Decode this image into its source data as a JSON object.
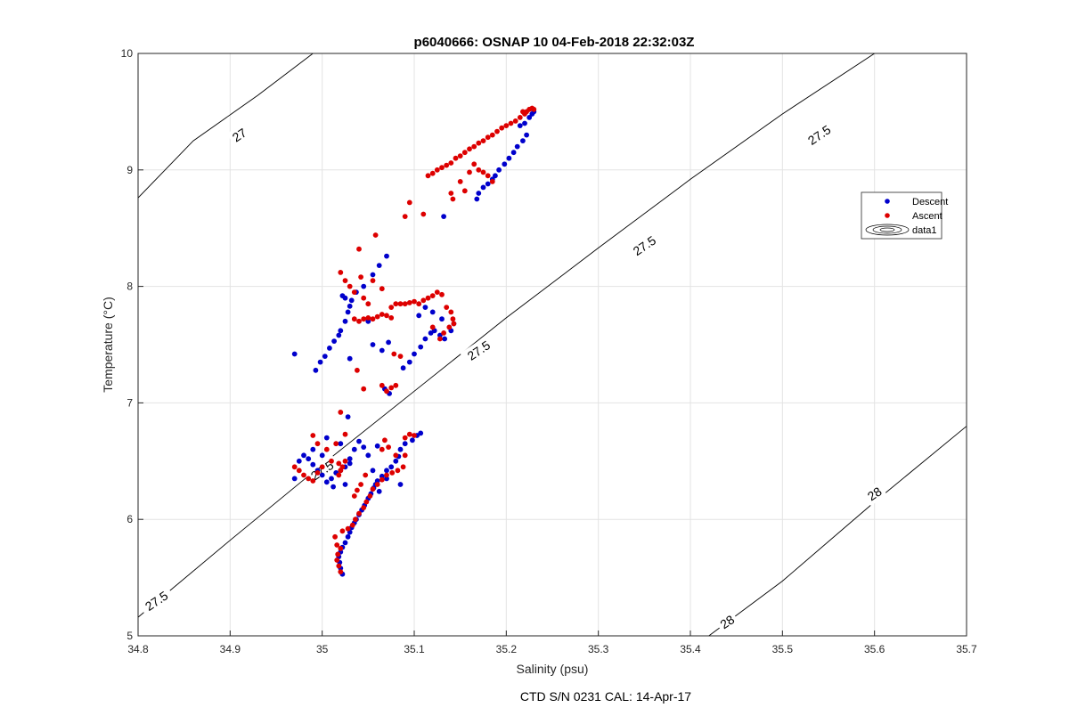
{
  "chart_data": {
    "type": "scatter",
    "title": "p6040666: OSNAP 10 04-Feb-2018 22:32:03Z",
    "xlabel": "Salinity (psu)",
    "ylabel": "Temperature (°C)",
    "footer": "CTD S/N 0231  CAL: 14-Apr-17",
    "xlim": [
      34.8,
      35.7
    ],
    "ylim": [
      5,
      10
    ],
    "xticks": [
      "34.8",
      "34.9",
      "35",
      "35.1",
      "35.2",
      "35.3",
      "35.4",
      "35.5",
      "35.6",
      "35.7"
    ],
    "yticks": [
      "5",
      "6",
      "7",
      "8",
      "9",
      "10"
    ],
    "grid": true,
    "legend_position": "right",
    "legend": [
      "Descent",
      "Ascent",
      "data1"
    ],
    "contours": [
      {
        "level": "27",
        "points": [
          [
            34.8,
            8.76
          ],
          [
            34.86,
            9.25
          ],
          [
            34.93,
            9.64
          ],
          [
            34.99,
            10.0
          ]
        ],
        "labels": [
          {
            "text": "27",
            "at": [
              34.91,
              9.3
            ],
            "angle": -34
          }
        ]
      },
      {
        "level": "27.5",
        "points": [
          [
            34.8,
            5.16
          ],
          [
            34.9,
            5.82
          ],
          [
            35.0,
            6.47
          ],
          [
            35.1,
            7.1
          ],
          [
            35.2,
            7.73
          ],
          [
            35.3,
            8.33
          ],
          [
            35.4,
            8.92
          ],
          [
            35.5,
            9.48
          ],
          [
            35.6,
            10.0
          ],
          [
            35.7,
            10.0
          ]
        ],
        "labels": [
          {
            "text": "27.5",
            "at": [
              34.82,
              5.3
            ],
            "angle": -34
          },
          {
            "text": "27.5",
            "at": [
              35.0,
              6.42
            ],
            "angle": -34
          },
          {
            "text": "27.5",
            "at": [
              35.17,
              7.45
            ],
            "angle": -34
          },
          {
            "text": "27.5",
            "at": [
              35.35,
              8.35
            ],
            "angle": -34
          },
          {
            "text": "27.5",
            "at": [
              35.54,
              9.3
            ],
            "angle": -34
          }
        ]
      },
      {
        "level": "28",
        "points": [
          [
            35.42,
            5.0
          ],
          [
            35.5,
            5.47
          ],
          [
            35.6,
            6.15
          ],
          [
            35.7,
            6.8
          ]
        ],
        "labels": [
          {
            "text": "28",
            "at": [
              35.44,
              5.12
            ],
            "angle": -34
          },
          {
            "text": "28",
            "at": [
              35.6,
              6.22
            ],
            "angle": -34
          }
        ]
      }
    ],
    "series": [
      {
        "name": "Descent",
        "color": "#0000cc",
        "points": [
          [
            35.022,
            5.53
          ],
          [
            35.02,
            5.58
          ],
          [
            35.019,
            5.63
          ],
          [
            35.018,
            5.68
          ],
          [
            35.02,
            5.72
          ],
          [
            35.022,
            5.76
          ],
          [
            35.025,
            5.8
          ],
          [
            35.028,
            5.85
          ],
          [
            35.03,
            5.89
          ],
          [
            35.032,
            5.93
          ],
          [
            35.035,
            5.97
          ],
          [
            35.037,
            6.0
          ],
          [
            35.04,
            6.04
          ],
          [
            35.043,
            6.08
          ],
          [
            35.046,
            6.12
          ],
          [
            35.05,
            6.18
          ],
          [
            35.053,
            6.22
          ],
          [
            35.056,
            6.27
          ],
          [
            35.058,
            6.3
          ],
          [
            35.06,
            6.33
          ],
          [
            35.065,
            6.37
          ],
          [
            35.07,
            6.42
          ],
          [
            35.075,
            6.45
          ],
          [
            35.08,
            6.5
          ],
          [
            35.083,
            6.54
          ],
          [
            35.085,
            6.6
          ],
          [
            35.09,
            6.65
          ],
          [
            35.098,
            6.68
          ],
          [
            35.103,
            6.72
          ],
          [
            35.107,
            6.74
          ],
          [
            35.06,
            6.63
          ],
          [
            35.05,
            6.55
          ],
          [
            35.045,
            6.62
          ],
          [
            35.04,
            6.67
          ],
          [
            35.035,
            6.6
          ],
          [
            35.03,
            6.52
          ],
          [
            35.025,
            6.45
          ],
          [
            35.02,
            6.42
          ],
          [
            35.015,
            6.4
          ],
          [
            35.01,
            6.35
          ],
          [
            35.005,
            6.32
          ],
          [
            35.0,
            6.38
          ],
          [
            34.995,
            6.42
          ],
          [
            34.99,
            6.47
          ],
          [
            34.985,
            6.52
          ],
          [
            34.98,
            6.55
          ],
          [
            34.975,
            6.5
          ],
          [
            34.97,
            6.35
          ],
          [
            34.99,
            6.6
          ],
          [
            35.005,
            6.7
          ],
          [
            35.02,
            6.65
          ],
          [
            35.028,
            6.88
          ],
          [
            35.0,
            6.55
          ],
          [
            35.012,
            6.28
          ],
          [
            35.025,
            6.3
          ],
          [
            35.03,
            6.48
          ],
          [
            35.055,
            6.42
          ],
          [
            35.07,
            6.35
          ],
          [
            35.085,
            6.3
          ],
          [
            35.062,
            6.24
          ],
          [
            34.97,
            7.42
          ],
          [
            34.993,
            7.28
          ],
          [
            34.998,
            7.35
          ],
          [
            35.003,
            7.4
          ],
          [
            35.008,
            7.47
          ],
          [
            35.013,
            7.53
          ],
          [
            35.018,
            7.58
          ],
          [
            35.02,
            7.62
          ],
          [
            35.025,
            7.7
          ],
          [
            35.028,
            7.78
          ],
          [
            35.03,
            7.83
          ],
          [
            35.025,
            7.9
          ],
          [
            35.022,
            7.92
          ],
          [
            35.032,
            7.88
          ],
          [
            35.037,
            7.95
          ],
          [
            35.045,
            8.0
          ],
          [
            35.055,
            8.1
          ],
          [
            35.062,
            8.18
          ],
          [
            35.07,
            8.26
          ],
          [
            35.05,
            7.7
          ],
          [
            35.055,
            7.5
          ],
          [
            35.065,
            7.45
          ],
          [
            35.072,
            7.52
          ],
          [
            35.068,
            7.12
          ],
          [
            35.073,
            7.08
          ],
          [
            35.088,
            7.3
          ],
          [
            35.095,
            7.35
          ],
          [
            35.1,
            7.42
          ],
          [
            35.107,
            7.48
          ],
          [
            35.112,
            7.55
          ],
          [
            35.118,
            7.6
          ],
          [
            35.122,
            7.62
          ],
          [
            35.128,
            7.58
          ],
          [
            35.133,
            7.55
          ],
          [
            35.14,
            7.62
          ],
          [
            35.143,
            7.68
          ],
          [
            35.13,
            7.72
          ],
          [
            35.12,
            7.78
          ],
          [
            35.112,
            7.82
          ],
          [
            35.105,
            7.75
          ],
          [
            35.03,
            7.38
          ],
          [
            35.132,
            8.6
          ],
          [
            35.168,
            8.75
          ],
          [
            35.17,
            8.8
          ],
          [
            35.175,
            8.85
          ],
          [
            35.18,
            8.88
          ],
          [
            35.185,
            8.92
          ],
          [
            35.188,
            8.95
          ],
          [
            35.192,
            9.0
          ],
          [
            35.198,
            9.05
          ],
          [
            35.203,
            9.1
          ],
          [
            35.208,
            9.15
          ],
          [
            35.212,
            9.2
          ],
          [
            35.218,
            9.25
          ],
          [
            35.222,
            9.3
          ],
          [
            35.215,
            9.38
          ],
          [
            35.22,
            9.4
          ],
          [
            35.225,
            9.45
          ],
          [
            35.228,
            9.48
          ],
          [
            35.23,
            9.5
          ]
        ]
      },
      {
        "name": "Ascent",
        "color": "#dd0000",
        "points": [
          [
            35.02,
            5.55
          ],
          [
            35.018,
            5.6
          ],
          [
            35.016,
            5.65
          ],
          [
            35.017,
            5.7
          ],
          [
            35.02,
            5.75
          ],
          [
            35.016,
            5.78
          ],
          [
            35.014,
            5.85
          ],
          [
            35.022,
            5.9
          ],
          [
            35.028,
            5.92
          ],
          [
            35.033,
            5.95
          ],
          [
            35.036,
            6.0
          ],
          [
            35.04,
            6.05
          ],
          [
            35.045,
            6.1
          ],
          [
            35.048,
            6.15
          ],
          [
            35.052,
            6.2
          ],
          [
            35.055,
            6.26
          ],
          [
            35.06,
            6.3
          ],
          [
            35.065,
            6.34
          ],
          [
            35.07,
            6.38
          ],
          [
            35.076,
            6.4
          ],
          [
            35.082,
            6.42
          ],
          [
            35.088,
            6.45
          ],
          [
            35.08,
            6.55
          ],
          [
            35.072,
            6.62
          ],
          [
            35.068,
            6.68
          ],
          [
            35.09,
            6.7
          ],
          [
            35.095,
            6.73
          ],
          [
            35.1,
            6.72
          ],
          [
            35.047,
            6.38
          ],
          [
            35.042,
            6.3
          ],
          [
            35.038,
            6.25
          ],
          [
            35.035,
            6.2
          ],
          [
            34.97,
            6.45
          ],
          [
            34.975,
            6.42
          ],
          [
            34.98,
            6.38
          ],
          [
            34.985,
            6.35
          ],
          [
            34.99,
            6.33
          ],
          [
            34.995,
            6.4
          ],
          [
            35.0,
            6.45
          ],
          [
            35.01,
            6.5
          ],
          [
            35.018,
            6.48
          ],
          [
            35.022,
            6.45
          ],
          [
            35.02,
            6.42
          ],
          [
            35.025,
            6.5
          ],
          [
            34.99,
            6.72
          ],
          [
            34.995,
            6.65
          ],
          [
            35.005,
            6.6
          ],
          [
            35.015,
            6.65
          ],
          [
            35.02,
            6.92
          ],
          [
            35.025,
            6.73
          ],
          [
            35.018,
            6.38
          ],
          [
            35.065,
            6.6
          ],
          [
            35.09,
            6.55
          ],
          [
            35.02,
            8.12
          ],
          [
            35.025,
            8.05
          ],
          [
            35.03,
            8.0
          ],
          [
            35.035,
            7.95
          ],
          [
            35.04,
            8.32
          ],
          [
            35.045,
            7.9
          ],
          [
            35.05,
            7.85
          ],
          [
            35.055,
            8.05
          ],
          [
            35.058,
            8.44
          ],
          [
            35.065,
            7.98
          ],
          [
            35.075,
            7.82
          ],
          [
            35.08,
            7.85
          ],
          [
            35.085,
            7.85
          ],
          [
            35.09,
            7.85
          ],
          [
            35.095,
            7.86
          ],
          [
            35.1,
            7.87
          ],
          [
            35.105,
            7.85
          ],
          [
            35.11,
            7.88
          ],
          [
            35.115,
            7.9
          ],
          [
            35.12,
            7.92
          ],
          [
            35.125,
            7.95
          ],
          [
            35.13,
            7.93
          ],
          [
            35.135,
            7.82
          ],
          [
            35.14,
            7.78
          ],
          [
            35.142,
            7.72
          ],
          [
            35.143,
            7.68
          ],
          [
            35.138,
            7.65
          ],
          [
            35.132,
            7.6
          ],
          [
            35.128,
            7.55
          ],
          [
            35.12,
            7.65
          ],
          [
            35.035,
            7.72
          ],
          [
            35.04,
            7.7
          ],
          [
            35.045,
            7.72
          ],
          [
            35.05,
            7.73
          ],
          [
            35.055,
            7.72
          ],
          [
            35.06,
            7.74
          ],
          [
            35.065,
            7.76
          ],
          [
            35.07,
            7.75
          ],
          [
            35.075,
            7.73
          ],
          [
            35.078,
            7.42
          ],
          [
            35.065,
            7.15
          ],
          [
            35.07,
            7.1
          ],
          [
            35.075,
            7.13
          ],
          [
            35.08,
            7.15
          ],
          [
            35.045,
            7.12
          ],
          [
            35.085,
            7.4
          ],
          [
            35.038,
            7.28
          ],
          [
            35.042,
            8.08
          ],
          [
            35.09,
            8.6
          ],
          [
            35.095,
            8.72
          ],
          [
            35.11,
            8.62
          ],
          [
            35.115,
            8.95
          ],
          [
            35.12,
            8.97
          ],
          [
            35.125,
            9.0
          ],
          [
            35.13,
            9.02
          ],
          [
            35.135,
            9.04
          ],
          [
            35.14,
            9.06
          ],
          [
            35.145,
            9.1
          ],
          [
            35.15,
            9.12
          ],
          [
            35.155,
            9.15
          ],
          [
            35.16,
            9.18
          ],
          [
            35.165,
            9.2
          ],
          [
            35.17,
            9.23
          ],
          [
            35.175,
            9.25
          ],
          [
            35.18,
            9.28
          ],
          [
            35.185,
            9.3
          ],
          [
            35.19,
            9.33
          ],
          [
            35.195,
            9.36
          ],
          [
            35.2,
            9.38
          ],
          [
            35.205,
            9.4
          ],
          [
            35.21,
            9.42
          ],
          [
            35.215,
            9.45
          ],
          [
            35.22,
            9.48
          ],
          [
            35.222,
            9.5
          ],
          [
            35.225,
            9.52
          ],
          [
            35.228,
            9.53
          ],
          [
            35.23,
            9.52
          ],
          [
            35.218,
            9.5
          ],
          [
            35.14,
            8.8
          ],
          [
            35.142,
            8.75
          ],
          [
            35.15,
            8.9
          ],
          [
            35.155,
            8.82
          ],
          [
            35.16,
            8.98
          ],
          [
            35.165,
            9.05
          ],
          [
            35.17,
            9.0
          ],
          [
            35.175,
            8.98
          ],
          [
            35.18,
            8.95
          ],
          [
            35.185,
            8.9
          ]
        ]
      }
    ]
  }
}
